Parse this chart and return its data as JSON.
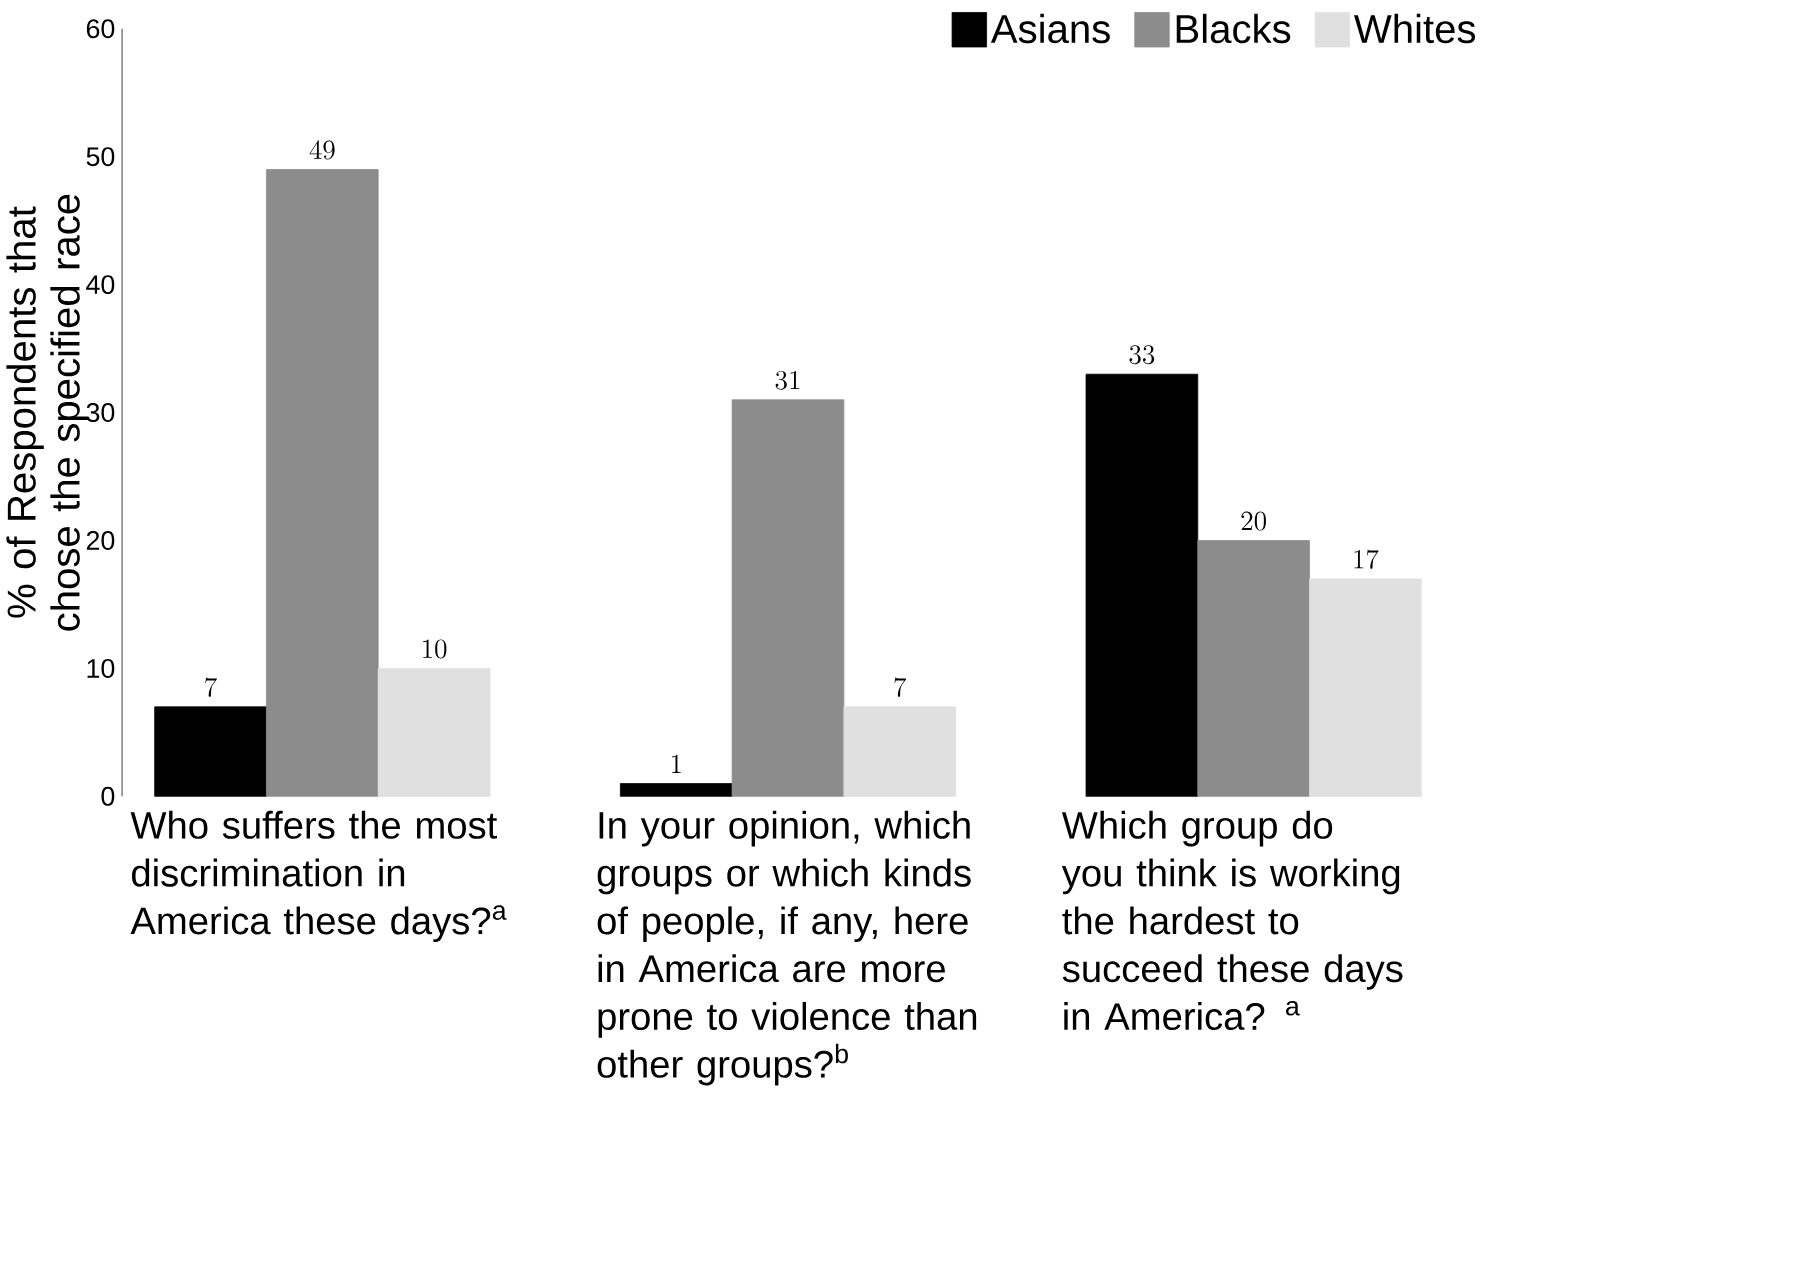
{
  "chart_data": {
    "type": "bar",
    "ylabel": "% of Respondents that chose the specified race",
    "categories": [
      "Who suffers the most discrimination in America these days?$^{a}$",
      "In your opinion, which groups or which kinds of people, if any, here in America are more prone to violence than other groups?$^{b}$",
      "Which group do you think is working the hardest to succeed these days in America? $^{a}$"
    ],
    "series": [
      {
        "name": "Asians",
        "color": "#000000",
        "values": [
          7,
          1,
          33
        ]
      },
      {
        "name": "Blacks",
        "color": "#8c8c8c",
        "values": [
          49,
          31,
          20
        ]
      },
      {
        "name": "Whites",
        "color": "#e0e0e0",
        "values": [
          10,
          7,
          17
        ]
      }
    ],
    "ylim": [
      0,
      60
    ],
    "yticks": [
      0,
      10,
      20,
      30,
      40,
      50,
      60
    ],
    "data_labels": true,
    "legend": "top right",
    "grid": false
  }
}
